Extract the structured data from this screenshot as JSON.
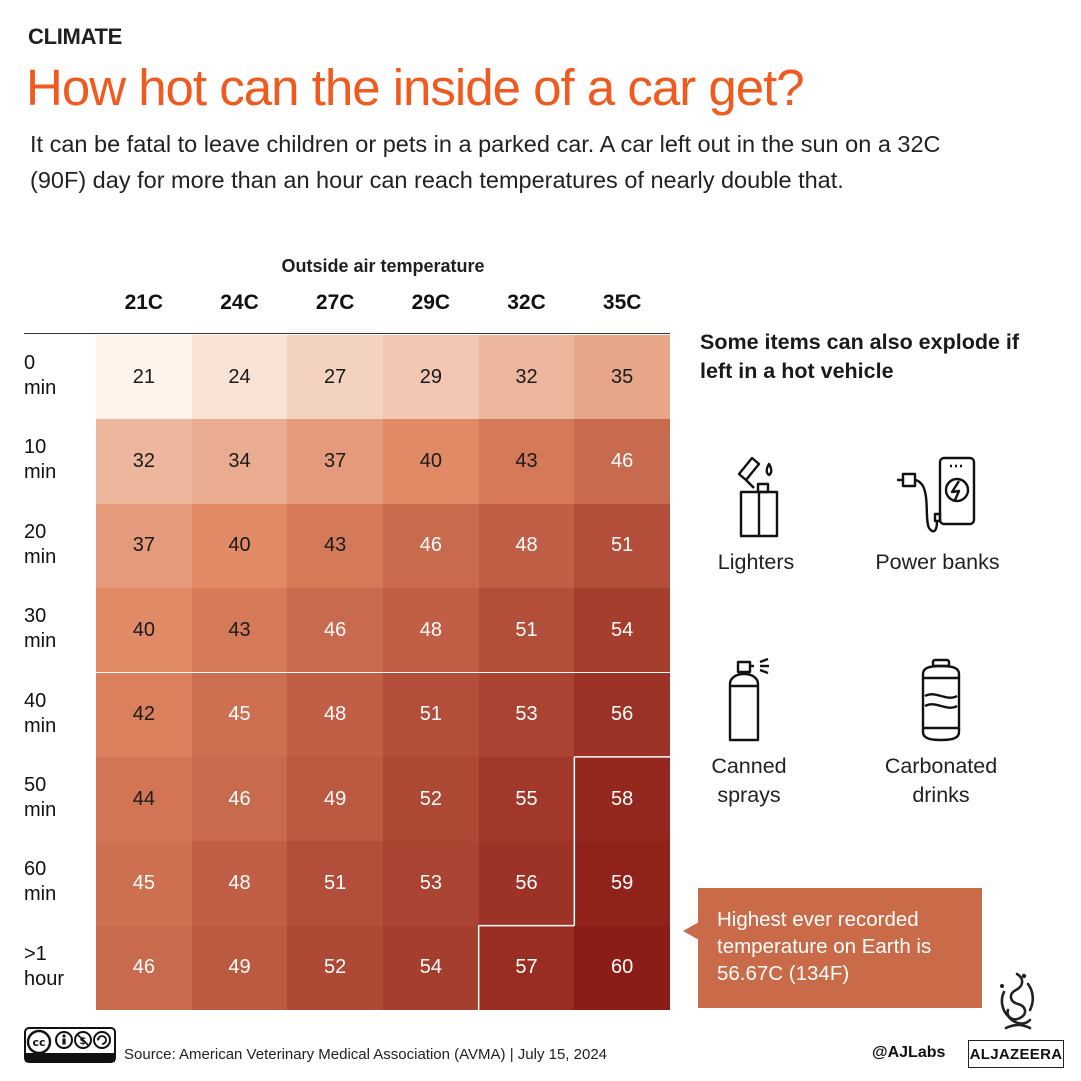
{
  "header": {
    "kicker": "CLIMATE",
    "title": "How hot can the inside of a car get?",
    "intro": "It can be fatal to leave children or pets in a parked car. A car left out in the sun on a 32C (90F) day for more than an hour can reach temperatures of nearly double that."
  },
  "chart_data": {
    "type": "heatmap",
    "title": "How hot can the inside of a car get?",
    "xlabel": "Outside air temperature",
    "ylabel": "",
    "columns": [
      "21C",
      "24C",
      "27C",
      "29C",
      "32C",
      "35C"
    ],
    "row_labels": [
      [
        "0",
        "min"
      ],
      [
        "10",
        "min"
      ],
      [
        "20",
        "min"
      ],
      [
        "30",
        "min"
      ],
      [
        "40",
        "min"
      ],
      [
        "50",
        "min"
      ],
      [
        "60",
        "min"
      ],
      [
        ">1",
        "hour"
      ]
    ],
    "values": [
      [
        21,
        24,
        27,
        29,
        32,
        35
      ],
      [
        32,
        34,
        37,
        40,
        43,
        46
      ],
      [
        37,
        40,
        43,
        46,
        48,
        51
      ],
      [
        40,
        43,
        46,
        48,
        51,
        54
      ],
      [
        42,
        45,
        48,
        51,
        53,
        56
      ],
      [
        44,
        46,
        49,
        52,
        55,
        58
      ],
      [
        45,
        48,
        51,
        53,
        56,
        59
      ],
      [
        46,
        49,
        52,
        54,
        57,
        60
      ]
    ],
    "value_unit": "C",
    "threshold_value": 56.67,
    "color_range": [
      21,
      60
    ],
    "colors": {
      "low": "#fdf3ea",
      "mid": "#e08863",
      "high": "#8c1d16"
    }
  },
  "side_panel": {
    "heading": "Some items can also explode if left in a hot vehicle",
    "items": [
      {
        "icon": "lighter-icon",
        "label": "Lighters"
      },
      {
        "icon": "power-bank-icon",
        "label": "Power banks"
      },
      {
        "icon": "spray-can-icon",
        "label_lines": [
          "Canned",
          "sprays"
        ]
      },
      {
        "icon": "soda-can-icon",
        "label_lines": [
          "Carbonated",
          "drinks"
        ]
      }
    ]
  },
  "callout": {
    "text": "Highest ever recorded temperature on Earth is 56.67C (134F)",
    "color": "#c96a49"
  },
  "footer": {
    "license_icon": "cc-by-nc-sa-icon",
    "source": "Source: American Veterinary Medical Association (AVMA)  |  July 15, 2024",
    "handle": "@AJLabs",
    "logo_text": "ALJAZEERA"
  },
  "colors": {
    "accent": "#f05a1e",
    "text": "#1a1a1a"
  }
}
